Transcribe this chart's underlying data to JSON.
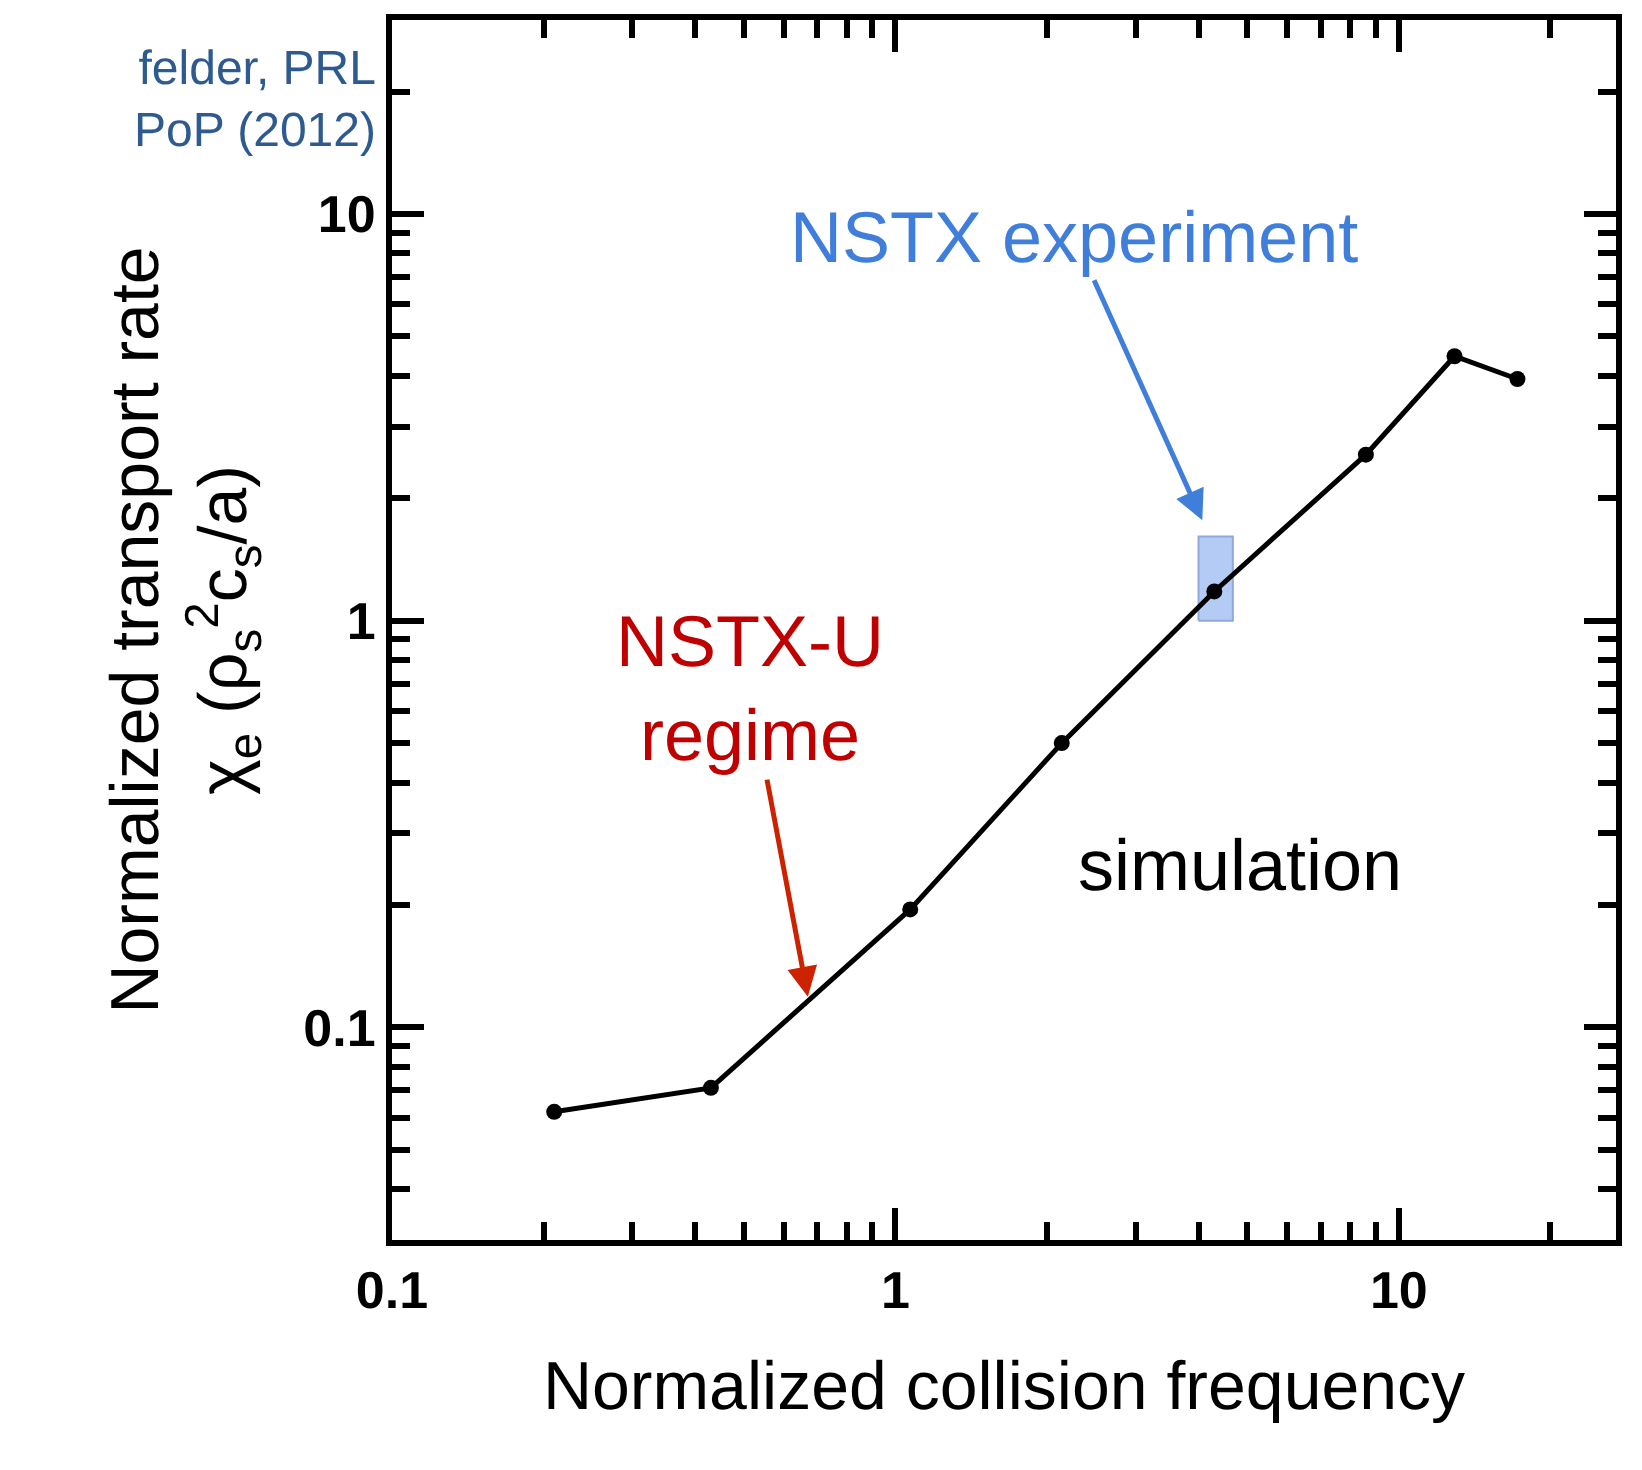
{
  "chart_data": {
    "type": "line",
    "xlabel": "Normalized collision frequency",
    "ylabel": "Normalized transport rate\nχ$_{e}$ (ρ$_{s}$$^{2}$c$_{s}$/a)",
    "log": "xy",
    "grid": false,
    "line_style": "solid",
    "xlim": [
      0.1,
      27
    ],
    "ylim": [
      0.03,
      30
    ],
    "xticks": [
      0.1,
      {
        "value": 0.2,
        "label": null
      },
      {
        "value": 0.3,
        "label": null
      },
      {
        "value": 0.4,
        "label": null
      },
      {
        "value": 0.5,
        "label": null
      },
      {
        "value": 0.6,
        "label": null
      },
      {
        "value": 0.7,
        "label": null
      },
      {
        "value": 0.8,
        "label": null
      },
      {
        "value": 0.9,
        "label": null
      },
      1,
      {
        "value": 2,
        "label": null
      },
      {
        "value": 3,
        "label": null
      },
      {
        "value": 4,
        "label": null
      },
      {
        "value": 5,
        "label": null
      },
      {
        "value": 6,
        "label": null
      },
      {
        "value": 7,
        "label": null
      },
      {
        "value": 8,
        "label": null
      },
      {
        "value": 9,
        "label": null
      },
      10,
      {
        "value": 20,
        "label": null
      }
    ],
    "yticks": [
      {
        "value": 0.04,
        "label": null
      },
      {
        "value": 0.05,
        "label": null
      },
      {
        "value": 0.06,
        "label": null
      },
      {
        "value": 0.07,
        "label": null
      },
      {
        "value": 0.08,
        "label": null
      },
      {
        "value": 0.09,
        "label": null
      },
      0.1,
      {
        "value": 0.2,
        "label": null
      },
      {
        "value": 0.3,
        "label": null
      },
      {
        "value": 0.4,
        "label": null
      },
      {
        "value": 0.5,
        "label": null
      },
      {
        "value": 0.6,
        "label": null
      },
      {
        "value": 0.7,
        "label": null
      },
      {
        "value": 0.8,
        "label": null
      },
      {
        "value": 0.9,
        "label": null
      },
      1,
      {
        "value": 2,
        "label": null
      },
      {
        "value": 3,
        "label": null
      },
      {
        "value": 4,
        "label": null
      },
      {
        "value": 5,
        "label": null
      },
      {
        "value": 6,
        "label": null
      },
      {
        "value": 7,
        "label": null
      },
      {
        "value": 8,
        "label": null
      },
      {
        "value": 9,
        "label": null
      },
      10,
      {
        "value": 20,
        "label": null
      }
    ],
    "series": [
      {
        "type": "area",
        "color": "#b4cbf5",
        "x": [
          4.0,
          4.68,
          4.68,
          4.0,
          4.0
        ],
        "values": [
          1.0,
          1.0,
          1.61,
          1.61,
          1.0
        ]
      },
      {
        "color": "#000000",
        "marker": "circle",
        "x": [
          0.21,
          0.43,
          1.07,
          2.14,
          4.3,
          8.6,
          12.9,
          17.2
        ],
        "values": [
          0.062,
          0.071,
          0.195,
          0.5,
          1.18,
          2.56,
          4.47,
          3.93
        ]
      }
    ],
    "annotations": [
      "NSTX experiment",
      {
        "text": "NSTX-U\nregime",
        "x": 0.67,
        "y": 0.119
      },
      "simulation",
      "felder, PRL\nPoP (2012)"
    ]
  }
}
